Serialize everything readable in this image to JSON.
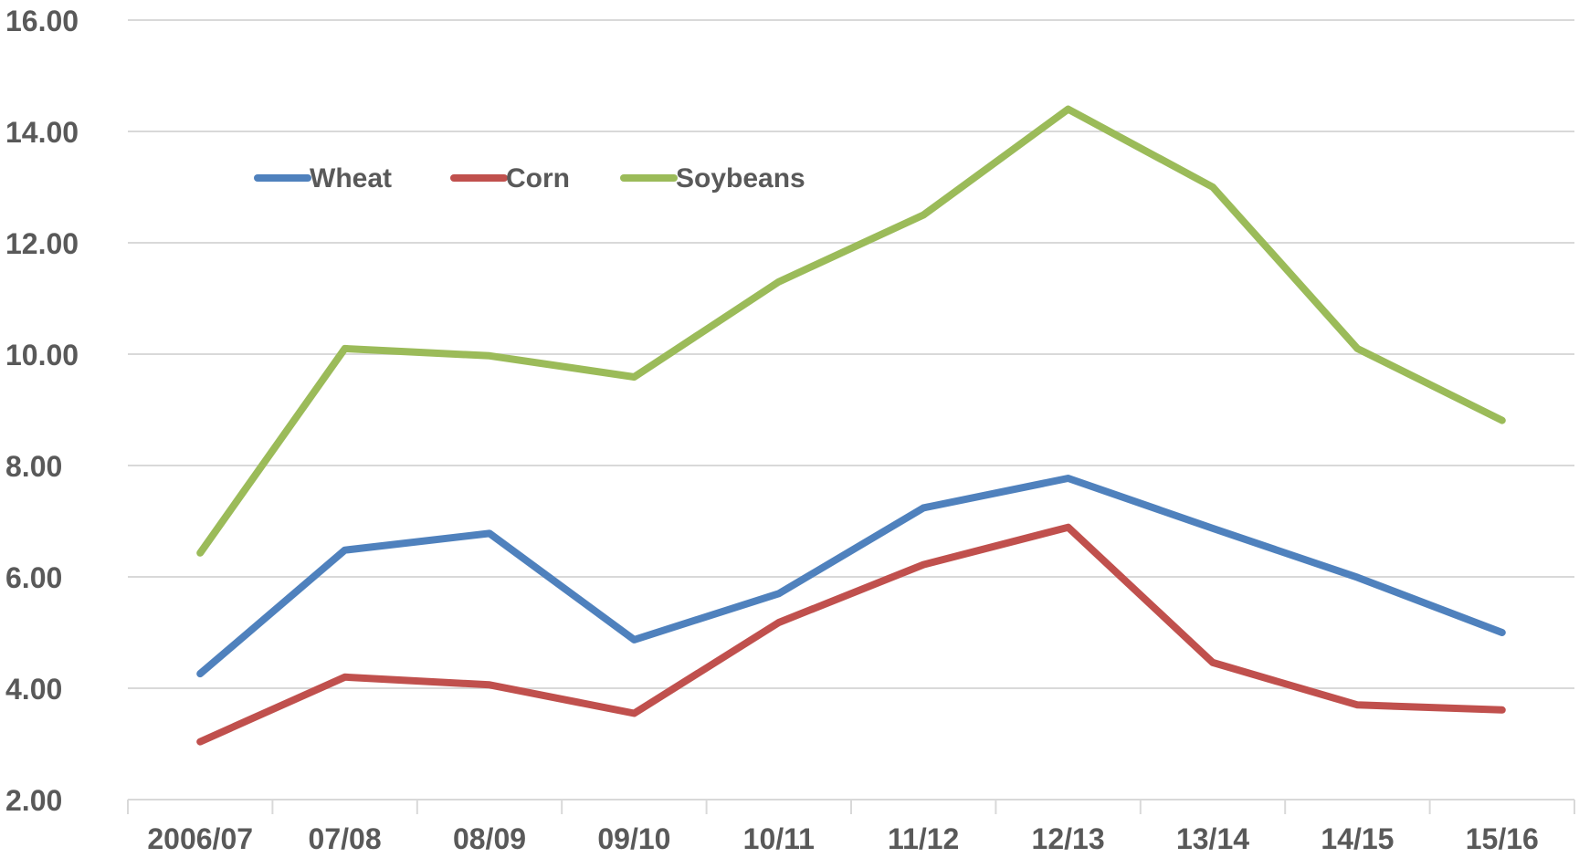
{
  "chart_data": {
    "type": "line",
    "categories": [
      "2006/07",
      "07/08",
      "08/09",
      "09/10",
      "10/11",
      "11/12",
      "12/13",
      "13/14",
      "14/15",
      "15/16"
    ],
    "series": [
      {
        "name": "Wheat",
        "color": "#4f81bd",
        "values": [
          4.26,
          6.48,
          6.78,
          4.87,
          5.7,
          7.24,
          7.77,
          6.87,
          5.99,
          5.0
        ]
      },
      {
        "name": "Corn",
        "color": "#c0504d",
        "values": [
          3.04,
          4.2,
          4.06,
          3.55,
          5.18,
          6.22,
          6.89,
          4.46,
          3.7,
          3.61
        ]
      },
      {
        "name": "Soybeans",
        "color": "#9bbb59",
        "values": [
          6.43,
          10.1,
          9.97,
          9.59,
          11.3,
          12.5,
          14.4,
          13.0,
          10.1,
          8.81
        ]
      }
    ],
    "ylim": [
      2,
      16
    ],
    "yticks": [
      "2.00",
      "4.00",
      "6.00",
      "8.00",
      "10.00",
      "12.00",
      "14.00",
      "16.00"
    ],
    "grid": true,
    "legend_position": "top-left",
    "title": "",
    "xlabel": "",
    "ylabel": ""
  }
}
